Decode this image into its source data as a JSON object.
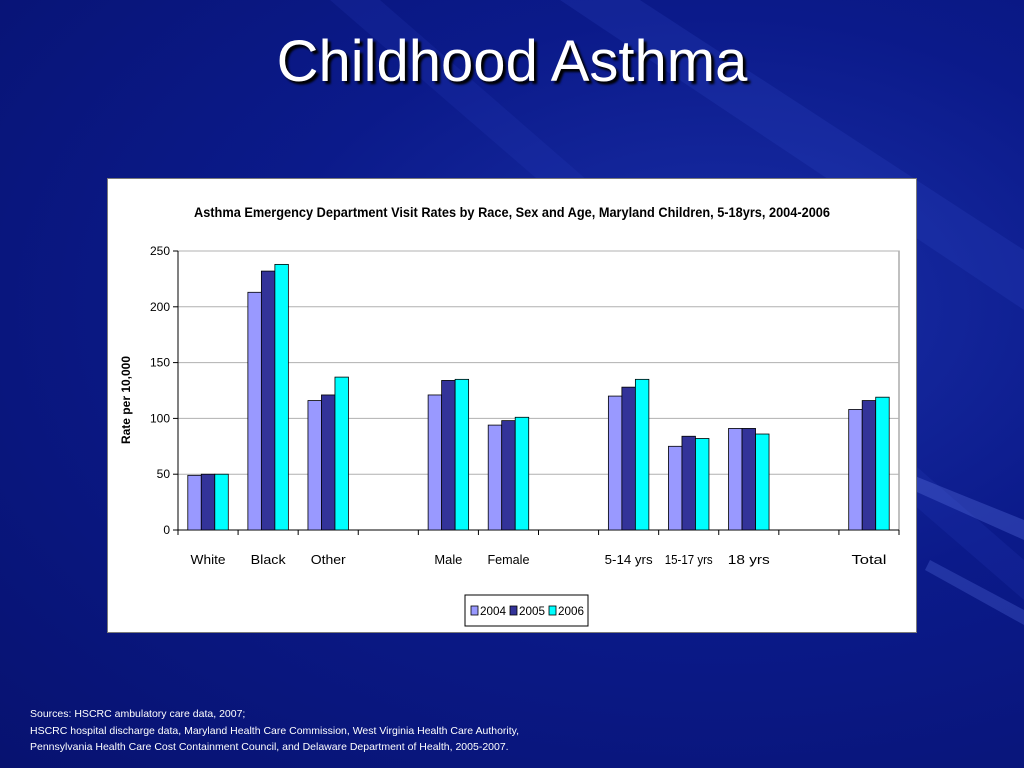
{
  "slide": {
    "title": "Childhood Asthma"
  },
  "sources": [
    "Sources:  HSCRC ambulatory care data, 2007;",
    "HSCRC  hospital discharge data, Maryland Health Care Commission, West Virginia Health Care Authority,",
    "Pennsylvania Health Care Cost Containment Council, and Delaware Department of Health, 2005-2007."
  ],
  "chart_data": {
    "type": "bar",
    "title": "Asthma Emergency Department Visit Rates by Race, Sex and Age, Maryland Children, 5-18yrs, 2004-2006",
    "xlabel": "",
    "ylabel": "Rate per 10,000",
    "ylim": [
      0,
      250
    ],
    "yticks": [
      0,
      50,
      100,
      150,
      200,
      250
    ],
    "grid": true,
    "legend_position": "bottom",
    "categories": [
      "White",
      "Black",
      "Other",
      "",
      "Male",
      "Female",
      "",
      "5-14 yrs",
      "15-17 yrs",
      "18 yrs",
      "",
      "Total"
    ],
    "series": [
      {
        "name": "2004",
        "color": "#9999ff",
        "values": [
          49,
          213,
          116,
          null,
          121,
          94,
          null,
          120,
          75,
          91,
          null,
          108
        ]
      },
      {
        "name": "2005",
        "color": "#333399",
        "values": [
          50,
          232,
          121,
          null,
          134,
          98,
          null,
          128,
          84,
          91,
          null,
          116
        ]
      },
      {
        "name": "2006",
        "color": "#00ffff",
        "values": [
          50,
          238,
          137,
          null,
          135,
          101,
          null,
          135,
          82,
          86,
          null,
          119
        ]
      }
    ]
  }
}
